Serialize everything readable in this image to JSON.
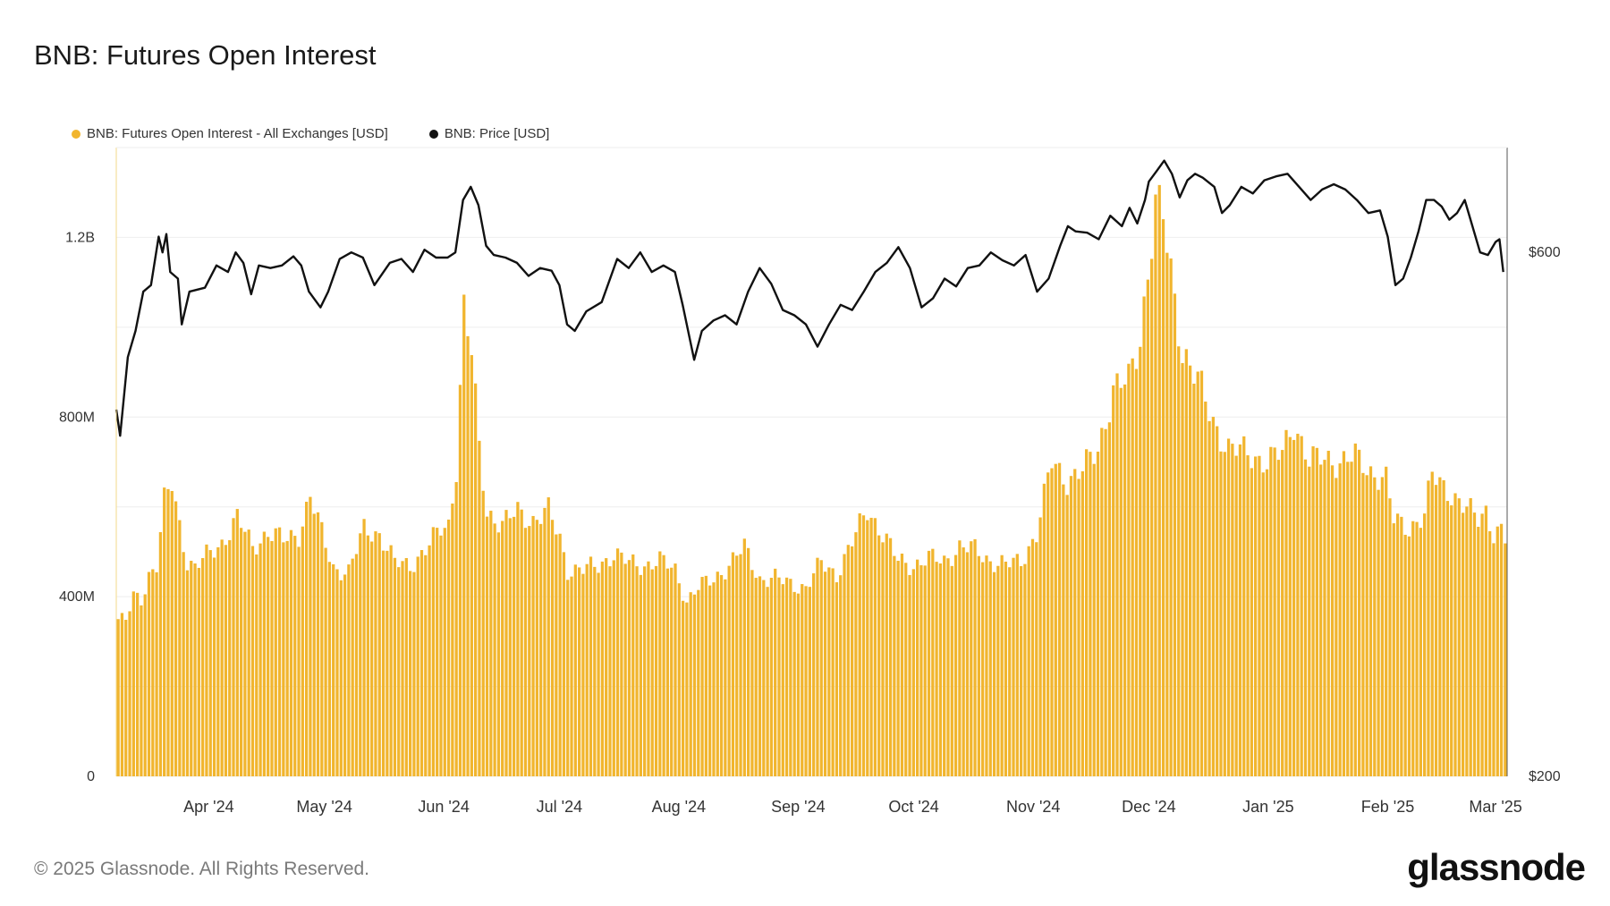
{
  "title": "BNB: Futures Open Interest",
  "footer": "© 2025 Glassnode. All Rights Reserved.",
  "brand": "glassnode",
  "colors": {
    "oi": "#f1b52e",
    "price": "#111111",
    "grid": "#eeeeee",
    "axis": "#cccccc"
  },
  "chart_data": {
    "type": "bar",
    "grid": true,
    "legend_position": "top-left",
    "series": [
      {
        "name": "BNB: Futures Open Interest - All Exchanges [USD]",
        "type": "bar",
        "axis": "left"
      },
      {
        "name": "BNB: Price [USD]",
        "type": "line",
        "axis": "right"
      }
    ],
    "y_left": {
      "min": 0,
      "max": 1400000000,
      "ticks": [
        0,
        400000000,
        800000000,
        1200000000
      ],
      "tick_labels": [
        "0",
        "400M",
        "800M",
        "1.2B"
      ]
    },
    "y_right": {
      "min": 200,
      "max": 680,
      "ticks": [
        200,
        600
      ],
      "tick_labels": [
        "$200",
        "$600"
      ]
    },
    "x_labels": [
      "Apr '24",
      "May '24",
      "Jun '24",
      "Jul '24",
      "Aug '24",
      "Sep '24",
      "Oct '24",
      "Nov '24",
      "Dec '24",
      "Jan '25",
      "Feb '25",
      "Mar '25"
    ],
    "x_label_dates": [
      "2024-04-01",
      "2024-05-01",
      "2024-06-01",
      "2024-07-01",
      "2024-08-01",
      "2024-09-01",
      "2024-10-01",
      "2024-11-01",
      "2024-12-01",
      "2025-01-01",
      "2025-02-01",
      "2025-03-01"
    ],
    "x_range": [
      "2024-03-08",
      "2025-03-04"
    ],
    "oi_points": [
      [
        "2024-03-08",
        350000000
      ],
      [
        "2024-03-10",
        345000000
      ],
      [
        "2024-03-12",
        400000000
      ],
      [
        "2024-03-14",
        395000000
      ],
      [
        "2024-03-16",
        450000000
      ],
      [
        "2024-03-18",
        470000000
      ],
      [
        "2024-03-20",
        610000000
      ],
      [
        "2024-03-22",
        650000000
      ],
      [
        "2024-03-24",
        560000000
      ],
      [
        "2024-03-26",
        480000000
      ],
      [
        "2024-03-28",
        465000000
      ],
      [
        "2024-03-31",
        490000000
      ],
      [
        "2024-04-04",
        520000000
      ],
      [
        "2024-04-08",
        575000000
      ],
      [
        "2024-04-12",
        510000000
      ],
      [
        "2024-04-16",
        545000000
      ],
      [
        "2024-04-20",
        525000000
      ],
      [
        "2024-04-24",
        540000000
      ],
      [
        "2024-04-27",
        625000000
      ],
      [
        "2024-04-30",
        540000000
      ],
      [
        "2024-05-03",
        465000000
      ],
      [
        "2024-05-07",
        455000000
      ],
      [
        "2024-05-11",
        550000000
      ],
      [
        "2024-05-15",
        540000000
      ],
      [
        "2024-05-19",
        475000000
      ],
      [
        "2024-05-23",
        470000000
      ],
      [
        "2024-05-27",
        505000000
      ],
      [
        "2024-05-31",
        550000000
      ],
      [
        "2024-06-02",
        560000000
      ],
      [
        "2024-06-04",
        690000000
      ],
      [
        "2024-06-06",
        1040000000
      ],
      [
        "2024-06-08",
        940000000
      ],
      [
        "2024-06-10",
        730000000
      ],
      [
        "2024-06-12",
        590000000
      ],
      [
        "2024-06-16",
        560000000
      ],
      [
        "2024-06-20",
        590000000
      ],
      [
        "2024-06-24",
        570000000
      ],
      [
        "2024-06-28",
        590000000
      ],
      [
        "2024-07-01",
        530000000
      ],
      [
        "2024-07-03",
        460000000
      ],
      [
        "2024-07-07",
        460000000
      ],
      [
        "2024-07-11",
        470000000
      ],
      [
        "2024-07-15",
        495000000
      ],
      [
        "2024-07-19",
        475000000
      ],
      [
        "2024-07-23",
        470000000
      ],
      [
        "2024-07-27",
        480000000
      ],
      [
        "2024-07-31",
        460000000
      ],
      [
        "2024-08-03",
        390000000
      ],
      [
        "2024-08-06",
        420000000
      ],
      [
        "2024-08-10",
        440000000
      ],
      [
        "2024-08-14",
        470000000
      ],
      [
        "2024-08-18",
        510000000
      ],
      [
        "2024-08-22",
        440000000
      ],
      [
        "2024-08-26",
        440000000
      ],
      [
        "2024-08-30",
        430000000
      ],
      [
        "2024-09-03",
        420000000
      ],
      [
        "2024-09-07",
        475000000
      ],
      [
        "2024-09-11",
        450000000
      ],
      [
        "2024-09-15",
        520000000
      ],
      [
        "2024-09-19",
        595000000
      ],
      [
        "2024-09-23",
        540000000
      ],
      [
        "2024-09-27",
        480000000
      ],
      [
        "2024-10-01",
        470000000
      ],
      [
        "2024-10-05",
        485000000
      ],
      [
        "2024-10-09",
        480000000
      ],
      [
        "2024-10-13",
        510000000
      ],
      [
        "2024-10-17",
        505000000
      ],
      [
        "2024-10-21",
        480000000
      ],
      [
        "2024-10-25",
        470000000
      ],
      [
        "2024-10-29",
        480000000
      ],
      [
        "2024-11-02",
        540000000
      ],
      [
        "2024-11-06",
        700000000
      ],
      [
        "2024-11-10",
        660000000
      ],
      [
        "2024-11-14",
        680000000
      ],
      [
        "2024-11-18",
        730000000
      ],
      [
        "2024-11-22",
        860000000
      ],
      [
        "2024-11-26",
        880000000
      ],
      [
        "2024-11-29",
        980000000
      ],
      [
        "2024-12-03",
        1270000000
      ],
      [
        "2024-12-05",
        1240000000
      ],
      [
        "2024-12-07",
        1120000000
      ],
      [
        "2024-12-10",
        950000000
      ],
      [
        "2024-12-14",
        880000000
      ],
      [
        "2024-12-18",
        790000000
      ],
      [
        "2024-12-22",
        730000000
      ],
      [
        "2024-12-27",
        720000000
      ],
      [
        "2025-01-01",
        700000000
      ],
      [
        "2025-01-05",
        720000000
      ],
      [
        "2025-01-08",
        790000000
      ],
      [
        "2025-01-12",
        700000000
      ],
      [
        "2025-01-16",
        710000000
      ],
      [
        "2025-01-20",
        700000000
      ],
      [
        "2025-01-24",
        710000000
      ],
      [
        "2025-01-28",
        680000000
      ],
      [
        "2025-02-01",
        660000000
      ],
      [
        "2025-02-03",
        570000000
      ],
      [
        "2025-02-07",
        555000000
      ],
      [
        "2025-02-11",
        580000000
      ],
      [
        "2025-02-13",
        670000000
      ],
      [
        "2025-02-17",
        640000000
      ],
      [
        "2025-02-21",
        600000000
      ],
      [
        "2025-02-25",
        575000000
      ],
      [
        "2025-02-27",
        595000000
      ],
      [
        "2025-03-01",
        540000000
      ],
      [
        "2025-03-03",
        545000000
      ],
      [
        "2025-03-04",
        525000000
      ]
    ],
    "price_points": [
      [
        "2024-03-08",
        480
      ],
      [
        "2024-03-09",
        460
      ],
      [
        "2024-03-11",
        520
      ],
      [
        "2024-03-13",
        540
      ],
      [
        "2024-03-15",
        570
      ],
      [
        "2024-03-17",
        575
      ],
      [
        "2024-03-19",
        612
      ],
      [
        "2024-03-20",
        600
      ],
      [
        "2024-03-21",
        614
      ],
      [
        "2024-03-22",
        585
      ],
      [
        "2024-03-24",
        580
      ],
      [
        "2024-03-25",
        545
      ],
      [
        "2024-03-27",
        570
      ],
      [
        "2024-03-31",
        573
      ],
      [
        "2024-04-03",
        590
      ],
      [
        "2024-04-06",
        585
      ],
      [
        "2024-04-08",
        600
      ],
      [
        "2024-04-10",
        592
      ],
      [
        "2024-04-12",
        568
      ],
      [
        "2024-04-14",
        590
      ],
      [
        "2024-04-17",
        588
      ],
      [
        "2024-04-20",
        590
      ],
      [
        "2024-04-23",
        597
      ],
      [
        "2024-04-25",
        590
      ],
      [
        "2024-04-27",
        570
      ],
      [
        "2024-04-30",
        558
      ],
      [
        "2024-05-02",
        570
      ],
      [
        "2024-05-05",
        595
      ],
      [
        "2024-05-08",
        600
      ],
      [
        "2024-05-11",
        596
      ],
      [
        "2024-05-14",
        575
      ],
      [
        "2024-05-18",
        592
      ],
      [
        "2024-05-21",
        595
      ],
      [
        "2024-05-24",
        585
      ],
      [
        "2024-05-27",
        602
      ],
      [
        "2024-05-30",
        596
      ],
      [
        "2024-06-02",
        596
      ],
      [
        "2024-06-04",
        600
      ],
      [
        "2024-06-06",
        640
      ],
      [
        "2024-06-08",
        650
      ],
      [
        "2024-06-10",
        636
      ],
      [
        "2024-06-12",
        605
      ],
      [
        "2024-06-14",
        598
      ],
      [
        "2024-06-17",
        596
      ],
      [
        "2024-06-20",
        592
      ],
      [
        "2024-06-23",
        582
      ],
      [
        "2024-06-26",
        588
      ],
      [
        "2024-06-29",
        586
      ],
      [
        "2024-07-01",
        575
      ],
      [
        "2024-07-03",
        545
      ],
      [
        "2024-07-05",
        540
      ],
      [
        "2024-07-08",
        555
      ],
      [
        "2024-07-12",
        562
      ],
      [
        "2024-07-16",
        595
      ],
      [
        "2024-07-19",
        588
      ],
      [
        "2024-07-22",
        600
      ],
      [
        "2024-07-25",
        585
      ],
      [
        "2024-07-28",
        590
      ],
      [
        "2024-07-31",
        585
      ],
      [
        "2024-08-02",
        560
      ],
      [
        "2024-08-05",
        518
      ],
      [
        "2024-08-07",
        540
      ],
      [
        "2024-08-10",
        548
      ],
      [
        "2024-08-13",
        552
      ],
      [
        "2024-08-16",
        545
      ],
      [
        "2024-08-19",
        570
      ],
      [
        "2024-08-22",
        588
      ],
      [
        "2024-08-25",
        576
      ],
      [
        "2024-08-28",
        556
      ],
      [
        "2024-08-31",
        552
      ],
      [
        "2024-09-03",
        545
      ],
      [
        "2024-09-06",
        528
      ],
      [
        "2024-09-09",
        545
      ],
      [
        "2024-09-12",
        560
      ],
      [
        "2024-09-15",
        556
      ],
      [
        "2024-09-18",
        570
      ],
      [
        "2024-09-21",
        585
      ],
      [
        "2024-09-24",
        592
      ],
      [
        "2024-09-27",
        604
      ],
      [
        "2024-09-30",
        588
      ],
      [
        "2024-10-03",
        558
      ],
      [
        "2024-10-06",
        565
      ],
      [
        "2024-10-09",
        580
      ],
      [
        "2024-10-12",
        574
      ],
      [
        "2024-10-15",
        588
      ],
      [
        "2024-10-18",
        590
      ],
      [
        "2024-10-21",
        600
      ],
      [
        "2024-10-24",
        594
      ],
      [
        "2024-10-27",
        590
      ],
      [
        "2024-10-30",
        598
      ],
      [
        "2024-11-02",
        570
      ],
      [
        "2024-11-05",
        580
      ],
      [
        "2024-11-08",
        605
      ],
      [
        "2024-11-10",
        620
      ],
      [
        "2024-11-12",
        616
      ],
      [
        "2024-11-15",
        615
      ],
      [
        "2024-11-18",
        610
      ],
      [
        "2024-11-21",
        628
      ],
      [
        "2024-11-24",
        620
      ],
      [
        "2024-11-26",
        634
      ],
      [
        "2024-11-28",
        622
      ],
      [
        "2024-11-30",
        640
      ],
      [
        "2024-12-01",
        654
      ],
      [
        "2024-12-03",
        662
      ],
      [
        "2024-12-05",
        670
      ],
      [
        "2024-12-07",
        660
      ],
      [
        "2024-12-09",
        642
      ],
      [
        "2024-12-11",
        655
      ],
      [
        "2024-12-13",
        660
      ],
      [
        "2024-12-15",
        657
      ],
      [
        "2024-12-18",
        650
      ],
      [
        "2024-12-20",
        630
      ],
      [
        "2024-12-22",
        636
      ],
      [
        "2024-12-25",
        650
      ],
      [
        "2024-12-28",
        645
      ],
      [
        "2024-12-31",
        655
      ],
      [
        "2025-01-03",
        658
      ],
      [
        "2025-01-06",
        660
      ],
      [
        "2025-01-09",
        650
      ],
      [
        "2025-01-12",
        640
      ],
      [
        "2025-01-15",
        648
      ],
      [
        "2025-01-18",
        652
      ],
      [
        "2025-01-21",
        648
      ],
      [
        "2025-01-24",
        640
      ],
      [
        "2025-01-27",
        630
      ],
      [
        "2025-01-30",
        632
      ],
      [
        "2025-02-01",
        612
      ],
      [
        "2025-02-03",
        575
      ],
      [
        "2025-02-05",
        580
      ],
      [
        "2025-02-07",
        596
      ],
      [
        "2025-02-09",
        616
      ],
      [
        "2025-02-11",
        640
      ],
      [
        "2025-02-13",
        640
      ],
      [
        "2025-02-15",
        635
      ],
      [
        "2025-02-17",
        625
      ],
      [
        "2025-02-19",
        630
      ],
      [
        "2025-02-21",
        640
      ],
      [
        "2025-02-23",
        620
      ],
      [
        "2025-02-25",
        600
      ],
      [
        "2025-02-27",
        598
      ],
      [
        "2025-03-01",
        608
      ],
      [
        "2025-03-02",
        610
      ],
      [
        "2025-03-03",
        585
      ]
    ]
  }
}
